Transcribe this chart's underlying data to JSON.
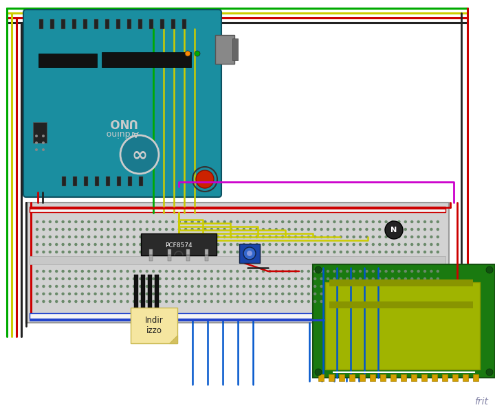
{
  "bg_color": "#ffffff",
  "wires": {
    "red": "#cc0000",
    "black": "#222222",
    "green": "#00aa00",
    "yellow": "#cccc00",
    "blue": "#0055cc",
    "magenta": "#cc00cc",
    "orange": "#cc6600",
    "cyan": "#00aaaa"
  },
  "frit_label": "frit",
  "frit_color": "#8888aa",
  "download_label": "Indir\nizzo",
  "download_bg": "#f5e6a0",
  "pcf_label": "PCF8574",
  "chip_color": "#333333"
}
